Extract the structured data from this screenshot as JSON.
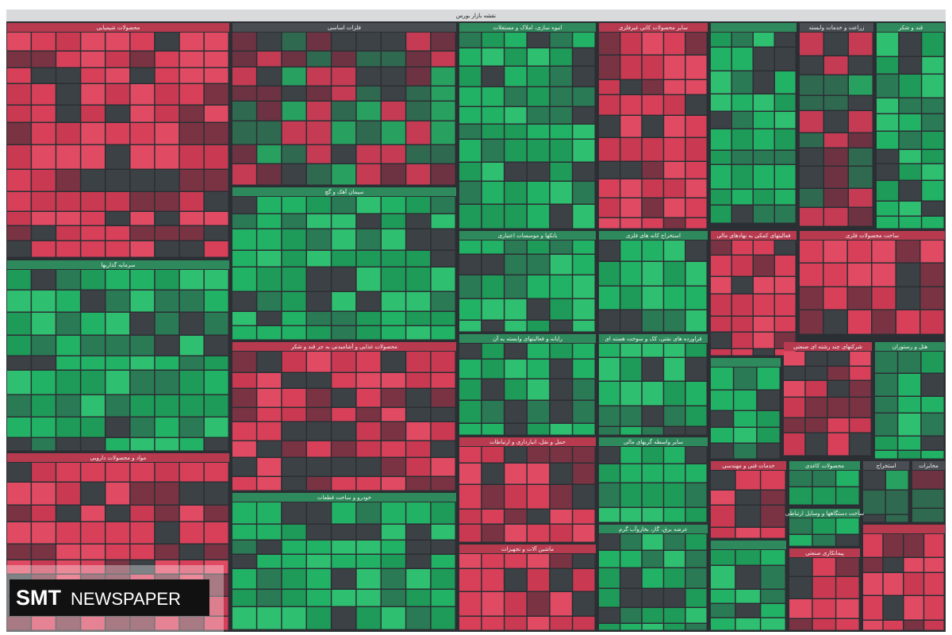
{
  "header": {
    "title": "نقشه بازار بورس"
  },
  "sectors": [
    {
      "title": "محصولات شیمیایی"
    },
    {
      "title": "فلزات اساسی"
    },
    {
      "title": "انبوه سازی، املاک و مستغلات"
    },
    {
      "title": "سایر محصولات کانی غیرفلزی"
    },
    {
      "title": "زراعت و خدمات وابسته"
    },
    {
      "title": "قند و شکر"
    },
    {
      "title": "سیمان آهک و گچ"
    },
    {
      "title": "بانکها و موسسات اعتباری"
    },
    {
      "title": "استخراج کانه های فلزی"
    },
    {
      "title": "فعالیتهای کمکی به نهادهای مالی"
    },
    {
      "title": "ساخت محصولات فلزی"
    },
    {
      "title": "سرمایه گذاریها"
    },
    {
      "title": "محصولات غذایی و آشامیدنی به جز قند و شکر"
    },
    {
      "title": "رایانه و فعالیتهای وابسته به آن"
    },
    {
      "title": "فراورده های نفتی، کک و سوخت هسته ای"
    },
    {
      "title": "شرکتهای چند رشته ای صنعتی"
    },
    {
      "title": "هتل و رستوران"
    },
    {
      "title": "مواد و محصولات دارویی"
    },
    {
      "title": "حمل و نقل، انبارداری و ارتباطات"
    },
    {
      "title": "سایر واسطه گریهای مالی"
    },
    {
      "title": "خودرو و ساخت قطعات"
    },
    {
      "title": "ماشین آلات و تجهیزات"
    },
    {
      "title": "عرضه برق، گاز، بخاروآب گرم"
    },
    {
      "title": "خدمات فنی و مهندسی"
    },
    {
      "title": "محصولات کاغذی"
    },
    {
      "title": "استخراج"
    },
    {
      "title": "ساخت دستگاهها و وسایل ارتباطی"
    },
    {
      "title": "پیمانکاری صنعتی"
    },
    {
      "title": "مخابرات"
    }
  ],
  "watermark": {
    "brand": "SMT",
    "name": "NEWSPAPER"
  }
}
